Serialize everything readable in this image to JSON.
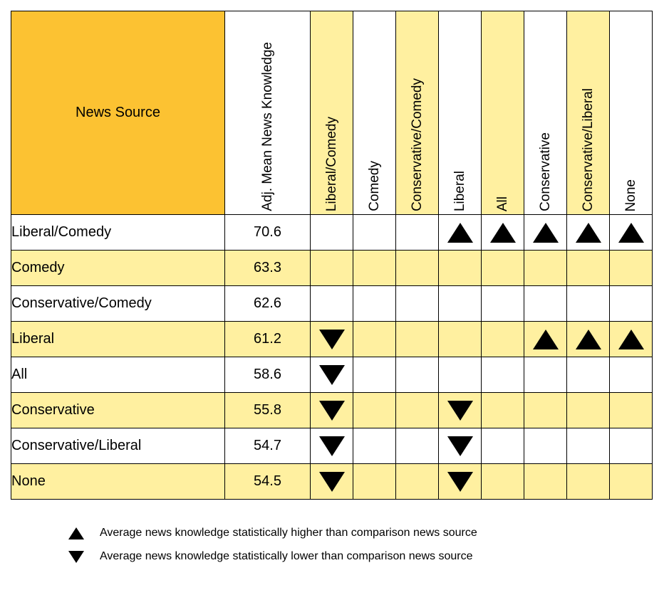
{
  "chart_data": {
    "type": "table",
    "corner_label": "News Source",
    "value_header": "Adj. Mean News Knowledge",
    "comparison_columns": [
      "Liberal/Comedy",
      "Comedy",
      "Conservative/Comedy",
      "Liberal",
      "All",
      "Conservative",
      "Conservative/Liberal",
      "None"
    ],
    "rows": [
      {
        "label": "Liberal/Comedy",
        "value": "70.6",
        "marks": [
          "",
          "",
          "",
          "up",
          "up",
          "up",
          "up",
          "up"
        ]
      },
      {
        "label": "Comedy",
        "value": "63.3",
        "marks": [
          "",
          "",
          "",
          "",
          "",
          "",
          "",
          ""
        ]
      },
      {
        "label": "Conservative/Comedy",
        "value": "62.6",
        "marks": [
          "",
          "",
          "",
          "",
          "",
          "",
          "",
          ""
        ]
      },
      {
        "label": "Liberal",
        "value": "61.2",
        "marks": [
          "down",
          "",
          "",
          "",
          "",
          "up",
          "up",
          "up"
        ]
      },
      {
        "label": "All",
        "value": "58.6",
        "marks": [
          "down",
          "",
          "",
          "",
          "",
          "",
          "",
          ""
        ]
      },
      {
        "label": "Conservative",
        "value": "55.8",
        "marks": [
          "down",
          "",
          "",
          "down",
          "",
          "",
          "",
          ""
        ]
      },
      {
        "label": "Conservative/Liberal",
        "value": "54.7",
        "marks": [
          "down",
          "",
          "",
          "down",
          "",
          "",
          "",
          ""
        ]
      },
      {
        "label": "None",
        "value": "54.5",
        "marks": [
          "down",
          "",
          "",
          "down",
          "",
          "",
          "",
          ""
        ]
      }
    ],
    "legend": {
      "higher": "Average news knowledge statistically higher than comparison news source",
      "lower": "Average news knowledge statistically lower than comparison news source"
    }
  },
  "colors": {
    "corner": "#FCC232",
    "highlight": "#FFF0A0",
    "plain": "#FFFFFF",
    "marker": "#000000"
  }
}
